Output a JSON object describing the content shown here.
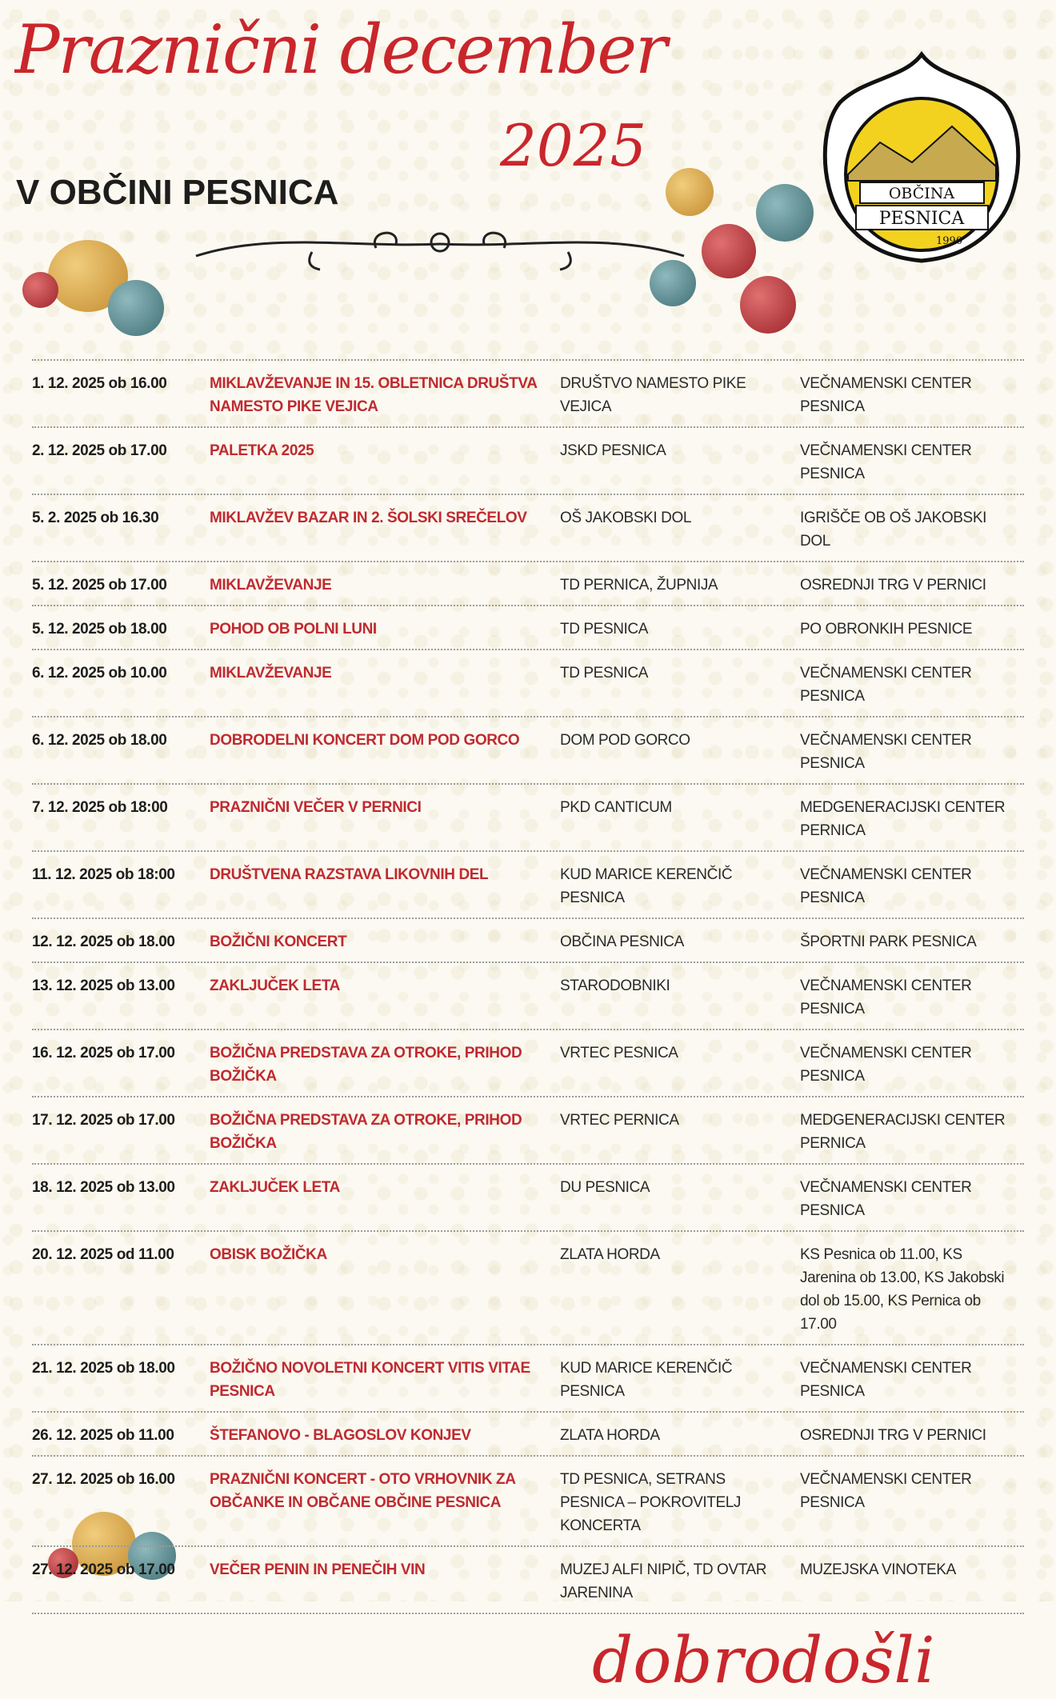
{
  "header": {
    "title": "Praznični december",
    "year": "2025",
    "subtitle": "V OBČINI PESNICA"
  },
  "logo": {
    "text_top": "OBČINA",
    "text_bottom": "PESNICA",
    "year": "1990"
  },
  "colors": {
    "accent": "#c9262c",
    "text": "#1d1d1b",
    "background": "#fbf9f1"
  },
  "events": [
    {
      "date": "1. 12. 2025 ob 16.00",
      "title": "MIKLAVŽEVANJE IN 15. OBLETNICA DRUŠTVA NAMESTO PIKE VEJICA",
      "organizer": "DRUŠTVO NAMESTO PIKE VEJICA",
      "location": "VEČNAMENSKI CENTER PESNICA"
    },
    {
      "date": "2. 12. 2025 ob 17.00",
      "title": "PALETKA 2025",
      "organizer": "JSKD PESNICA",
      "location": "VEČNAMENSKI CENTER PESNICA"
    },
    {
      "date": "5. 2. 2025 ob 16.30",
      "title": "MIKLAVŽEV BAZAR IN 2. ŠOLSKI SREČELOV",
      "organizer": "OŠ JAKOBSKI DOL",
      "location": "IGRIŠČE OB OŠ JAKOBSKI DOL"
    },
    {
      "date": "5. 12. 2025 ob 17.00",
      "title": "MIKLAVŽEVANJE",
      "organizer": "TD PERNICA, ŽUPNIJA",
      "location": "OSREDNJI TRG V PERNICI"
    },
    {
      "date": "5. 12. 2025 ob 18.00",
      "title": "POHOD OB POLNI LUNI",
      "organizer": "TD PESNICA",
      "location": "PO OBRONKIH PESNICE"
    },
    {
      "date": "6. 12. 2025 ob 10.00",
      "title": "MIKLAVŽEVANJE",
      "organizer": "TD PESNICA",
      "location": "VEČNAMENSKI CENTER PESNICA"
    },
    {
      "date": "6. 12. 2025 ob 18.00",
      "title": "DOBRODELNI KONCERT DOM POD GORCO",
      "organizer": "DOM POD GORCO",
      "location": "VEČNAMENSKI CENTER PESNICA"
    },
    {
      "date": "7. 12. 2025 ob 18:00",
      "title": "PRAZNIČNI VEČER V PERNICI",
      "organizer": "PKD CANTICUM",
      "location": "MEDGENERACIJSKI CENTER PERNICA"
    },
    {
      "date": "11. 12. 2025 ob 18:00",
      "title": "DRUŠTVENA RAZSTAVA LIKOVNIH DEL",
      "organizer": "KUD MARICE KERENČIČ PESNICA",
      "location": "VEČNAMENSKI CENTER PESNICA"
    },
    {
      "date": "12. 12. 2025 ob 18.00",
      "title": "BOŽIČNI KONCERT",
      "organizer": "OBČINA PESNICA",
      "location": "ŠPORTNI PARK PESNICA"
    },
    {
      "date": "13. 12. 2025 ob 13.00",
      "title": "ZAKLJUČEK LETA",
      "organizer": "STARODOBNIKI",
      "location": "VEČNAMENSKI CENTER PESNICA"
    },
    {
      "date": "16. 12. 2025 ob 17.00",
      "title": "BOŽIČNA PREDSTAVA ZA OTROKE, PRIHOD BOŽIČKA",
      "organizer": "VRTEC PESNICA",
      "location": "VEČNAMENSKI CENTER PESNICA"
    },
    {
      "date": "17. 12. 2025 ob 17.00",
      "title": "BOŽIČNA PREDSTAVA ZA OTROKE, PRIHOD BOŽIČKA",
      "organizer": "VRTEC PERNICA",
      "location": "MEDGENERACIJSKI CENTER PERNICA"
    },
    {
      "date": "18. 12. 2025 ob 13.00",
      "title": "ZAKLJUČEK LETA",
      "organizer": "DU PESNICA",
      "location": "VEČNAMENSKI CENTER PESNICA"
    },
    {
      "date": "20. 12. 2025 od 11.00",
      "title": "OBISK BOŽIČKA",
      "organizer": "ZLATA HORDA",
      "location": "KS Pesnica  ob 11.00, KS Jarenina ob 13.00, KS Jakobski dol ob 15.00, KS Pernica ob 17.00"
    },
    {
      "date": "21. 12. 2025 ob 18.00",
      "title": "BOŽIČNO NOVOLETNI KONCERT VITIS VITAE PESNICA",
      "organizer": "KUD MARICE KERENČIČ PESNICA",
      "location": "VEČNAMENSKI CENTER PESNICA"
    },
    {
      "date": "26. 12. 2025 ob 11.00",
      "title": "ŠTEFANOVO - BLAGOSLOV KONJEV",
      "organizer": "ZLATA HORDA",
      "location": "OSREDNJI TRG V PERNICI"
    },
    {
      "date": "27. 12. 2025 ob 16.00",
      "title": "PRAZNIČNI KONCERT -  OTO VRHOVNIK ZA OBČANKE IN OBČANE OBČINE PESNICA",
      "organizer": "TD PESNICA, SETRANS PESNICA – POKROVITELJ KONCERTA",
      "location": "VEČNAMENSKI CENTER PESNICA"
    },
    {
      "date": "27. 12. 2025 ob 17.00",
      "title": "VEČER PENIN IN PENEČIH VIN",
      "organizer": "MUZEJ ALFI NIPIČ, TD OVTAR JARENINA",
      "location": "MUZEJSKA VINOTEKA"
    }
  ],
  "footer": {
    "welcome": "dobrodošli"
  }
}
